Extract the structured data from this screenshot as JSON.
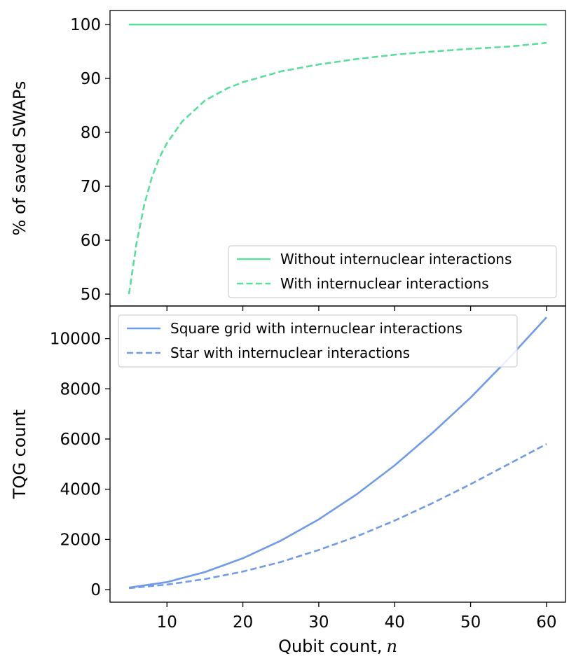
{
  "chart_data": [
    {
      "type": "line",
      "ylabel": "% of saved SWAPs",
      "xlim": [
        2.5,
        62.5
      ],
      "ylim": [
        47.8,
        102.6
      ],
      "yticks": [
        50,
        60,
        70,
        80,
        90,
        100
      ],
      "xticks": [
        10,
        20,
        30,
        40,
        50,
        60
      ],
      "show_x_tick_labels": false,
      "grid": false,
      "legend_position": "lower-right",
      "series": [
        {
          "name": "Without internuclear interactions",
          "color": "#5ade9a",
          "dash": "solid",
          "x": [
            5,
            10,
            15,
            20,
            25,
            30,
            35,
            40,
            45,
            50,
            55,
            60
          ],
          "y": [
            100,
            100,
            100,
            100,
            100,
            100,
            100,
            100,
            100,
            100,
            100,
            100
          ]
        },
        {
          "name": "With internuclear interactions",
          "color": "#5ade9a",
          "dash": "dashed",
          "x": [
            5,
            6,
            7,
            8,
            9,
            10,
            12,
            15,
            18,
            20,
            25,
            30,
            35,
            40,
            45,
            50,
            55,
            60
          ],
          "y": [
            50.0,
            59.5,
            66.5,
            71.6,
            75.3,
            78.0,
            82.0,
            85.9,
            88.2,
            89.3,
            91.3,
            92.6,
            93.6,
            94.4,
            95.0,
            95.5,
            95.9,
            96.6
          ]
        }
      ]
    },
    {
      "type": "line",
      "xlabel": "Qubit count,",
      "xlabel_math": "n",
      "ylabel": "TQG count",
      "xlim": [
        2.5,
        62.5
      ],
      "ylim": [
        -500,
        11300
      ],
      "yticks": [
        0,
        2000,
        4000,
        6000,
        8000,
        10000
      ],
      "xticks": [
        10,
        20,
        30,
        40,
        50,
        60
      ],
      "grid": false,
      "legend_position": "top-left",
      "series": [
        {
          "name": "Square grid with internuclear interactions",
          "color": "#6f9be8",
          "dash": "solid",
          "x": [
            5,
            10,
            15,
            20,
            25,
            30,
            35,
            40,
            45,
            50,
            55,
            60
          ],
          "y": [
            80,
            300,
            700,
            1250,
            1950,
            2800,
            3800,
            4950,
            6250,
            7650,
            9200,
            10850
          ]
        },
        {
          "name": "Star with internuclear interactions",
          "color": "#6f9be8",
          "dash": "dashed",
          "x": [
            5,
            10,
            15,
            20,
            25,
            30,
            35,
            40,
            45,
            50,
            55,
            60
          ],
          "y": [
            60,
            200,
            420,
            720,
            1100,
            1580,
            2120,
            2750,
            3450,
            4200,
            5000,
            5800
          ]
        }
      ]
    }
  ]
}
